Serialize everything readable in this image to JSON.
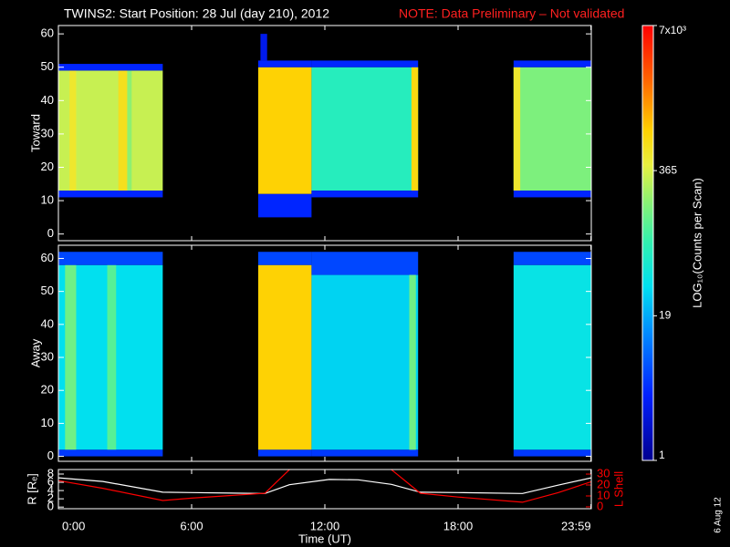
{
  "title": "TWINS2: Start Position: 28 Jul (day 210), 2012",
  "note": "NOTE: Data Preliminary – Not validated",
  "date": "6 Aug 12",
  "colorbar": {
    "label": "LOG₁₀(Counts per Scan)",
    "scale": "log",
    "lim": [
      1,
      7000
    ],
    "ticks": [
      1,
      19,
      365,
      {
        "value": 7000,
        "label": "7x10³"
      }
    ]
  },
  "chart_data": [
    {
      "type": "heatmap",
      "ylabel": "Toward",
      "xlim": [
        0,
        24
      ],
      "ylim": [
        -2,
        62.5
      ],
      "yticks": [
        0,
        10,
        20,
        30,
        40,
        50,
        60
      ],
      "cells": [
        {
          "x0": 0,
          "x1": 4.7,
          "y0": 13,
          "y1": 49,
          "value": 315
        },
        {
          "x0": 0.5,
          "x1": 0.8,
          "y0": 13,
          "y1": 49,
          "value": 500
        },
        {
          "x0": 2.7,
          "x1": 3.1,
          "y0": 13,
          "y1": 49,
          "value": 600
        },
        {
          "x0": 3.1,
          "x1": 3.3,
          "y0": 13,
          "y1": 49,
          "value": 200
        },
        {
          "x0": 0,
          "x1": 4.7,
          "y0": 49,
          "y1": 51,
          "value": 4
        },
        {
          "x0": 0,
          "x1": 4.7,
          "y0": 11,
          "y1": 13,
          "value": 4
        },
        {
          "x0": 9,
          "x1": 11.4,
          "y0": 12,
          "y1": 50,
          "value": 800
        },
        {
          "x0": 9,
          "x1": 11.4,
          "y0": 50,
          "y1": 52,
          "value": 4
        },
        {
          "x0": 9,
          "x1": 11.4,
          "y0": 5,
          "y1": 12,
          "value": 4
        },
        {
          "x0": 9.1,
          "x1": 9.4,
          "y0": 52,
          "y1": 60,
          "value": 3
        },
        {
          "x0": 11.4,
          "x1": 16.2,
          "y0": 13,
          "y1": 50,
          "value": 70
        },
        {
          "x0": 15.9,
          "x1": 16.2,
          "y0": 13,
          "y1": 50,
          "value": 700
        },
        {
          "x0": 11.4,
          "x1": 16.2,
          "y0": 50,
          "y1": 52,
          "value": 4
        },
        {
          "x0": 11.4,
          "x1": 16.2,
          "y0": 11,
          "y1": 13,
          "value": 4
        },
        {
          "x0": 20.5,
          "x1": 24,
          "y0": 13,
          "y1": 50,
          "value": 170
        },
        {
          "x0": 20.5,
          "x1": 20.8,
          "y0": 13,
          "y1": 50,
          "value": 500
        },
        {
          "x0": 20.5,
          "x1": 24,
          "y0": 50,
          "y1": 52,
          "value": 4
        },
        {
          "x0": 20.5,
          "x1": 24,
          "y0": 11,
          "y1": 13,
          "value": 4
        }
      ]
    },
    {
      "type": "heatmap",
      "ylabel": "Away",
      "xlim": [
        0,
        24
      ],
      "ylim": [
        -1.5,
        64
      ],
      "yticks": [
        0,
        10,
        20,
        30,
        40,
        50,
        60
      ],
      "cells": [
        {
          "x0": 0,
          "x1": 4.7,
          "y0": 2,
          "y1": 58,
          "value": 35
        },
        {
          "x0": 0.3,
          "x1": 0.8,
          "y0": 2,
          "y1": 58,
          "value": 150
        },
        {
          "x0": 2.2,
          "x1": 2.6,
          "y0": 2,
          "y1": 58,
          "value": 120
        },
        {
          "x0": 0,
          "x1": 4.7,
          "y0": 58,
          "y1": 62,
          "value": 6
        },
        {
          "x0": 0,
          "x1": 4.7,
          "y0": 0,
          "y1": 2,
          "value": 5
        },
        {
          "x0": 9,
          "x1": 11.4,
          "y0": 2,
          "y1": 58,
          "value": 800
        },
        {
          "x0": 9,
          "x1": 11.4,
          "y0": 58,
          "y1": 62,
          "value": 6
        },
        {
          "x0": 9,
          "x1": 11.4,
          "y0": 0,
          "y1": 2,
          "value": 5
        },
        {
          "x0": 11.4,
          "x1": 16.2,
          "y0": 2,
          "y1": 55,
          "value": 30
        },
        {
          "x0": 11.4,
          "x1": 16.2,
          "y0": 55,
          "y1": 62,
          "value": 6
        },
        {
          "x0": 11.4,
          "x1": 16.2,
          "y0": 0,
          "y1": 2,
          "value": 5
        },
        {
          "x0": 15.8,
          "x1": 16.1,
          "y0": 2,
          "y1": 55,
          "value": 150
        },
        {
          "x0": 20.5,
          "x1": 24,
          "y0": 2,
          "y1": 58,
          "value": 40
        },
        {
          "x0": 20.5,
          "x1": 24,
          "y0": 58,
          "y1": 62,
          "value": 6
        },
        {
          "x0": 20.5,
          "x1": 24,
          "y0": 0,
          "y1": 2,
          "value": 5
        }
      ]
    },
    {
      "type": "line",
      "ylabel": "R [Rₑ]",
      "y2label": "L Shell",
      "xlabel": "Time (UT)",
      "xlim": [
        0,
        24
      ],
      "xticks": [
        {
          "value": 0,
          "label": "0:00"
        },
        {
          "value": 6,
          "label": "6:00"
        },
        {
          "value": 12,
          "label": "12:00"
        },
        {
          "value": 18,
          "label": "18:00"
        },
        {
          "value": 23.983,
          "label": "23:59"
        }
      ],
      "ylim": [
        -0.4,
        9.1
      ],
      "yticks": [
        0,
        2,
        4,
        6,
        8
      ],
      "y2lim": [
        -1.7,
        34.2
      ],
      "y2ticks": [
        0,
        10,
        20,
        30
      ],
      "y2color": "#ff0000",
      "x": [
        0,
        2,
        4.7,
        6,
        9.3,
        10.4,
        12.2,
        13.5,
        15,
        16.3,
        18,
        20.9,
        22.5,
        24
      ],
      "series": [
        {
          "color": "#ffffff",
          "values": [
            7.1,
            6.2,
            3.6,
            3.5,
            3.3,
            5.4,
            6.7,
            6.6,
            5.5,
            3.6,
            3.5,
            3.3,
            5.3,
            7.1
          ]
        },
        {
          "color": "#ff0000",
          "axis": "y2",
          "values": [
            24,
            17,
            5.8,
            8,
            12.5,
            34,
            null,
            null,
            34,
            12.5,
            9,
            4.2,
            13,
            23
          ]
        }
      ]
    }
  ]
}
